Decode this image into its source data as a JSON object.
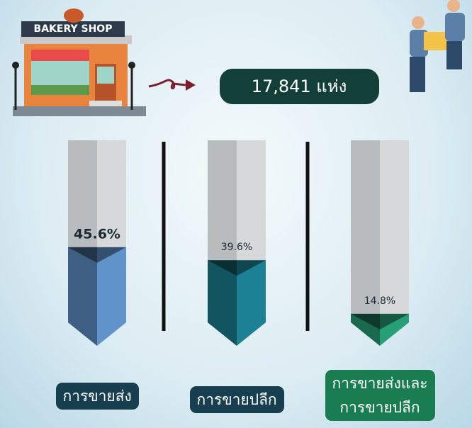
{
  "chart_data": {
    "type": "bar",
    "annotations": [
      "BAKERY SHOP",
      "17,841 แห่ง"
    ],
    "categories": [
      "การขายส่ง",
      "การขายปลีก",
      "การขายส่งและ\nการขายปลีก"
    ],
    "values": [
      45.6,
      39.6,
      14.8
    ],
    "value_labels": [
      "45.6%",
      "39.6%",
      "14.8%"
    ],
    "colors": [
      "#5f93c9",
      "#1c8194",
      "#28a077"
    ]
  }
}
